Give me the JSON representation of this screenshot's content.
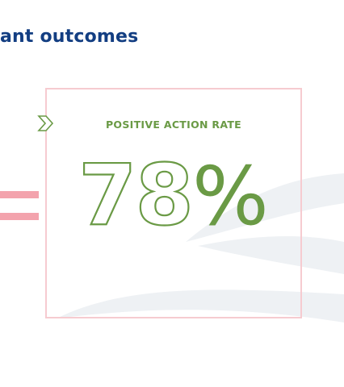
{
  "header": {
    "title": "ant outcomes"
  },
  "stat_card": {
    "label": "POSITIVE ACTION RATE",
    "value": "78",
    "unit": "%"
  },
  "colors": {
    "title": "#133e82",
    "accent_green": "#6a9a45",
    "card_border": "#f6cbd0",
    "equals_pink": "#f3a3ad",
    "wave_gray": "#eef1f4"
  },
  "icons": {
    "chevron": "chevron-right-icon",
    "equals": "equals-sign-icon"
  }
}
